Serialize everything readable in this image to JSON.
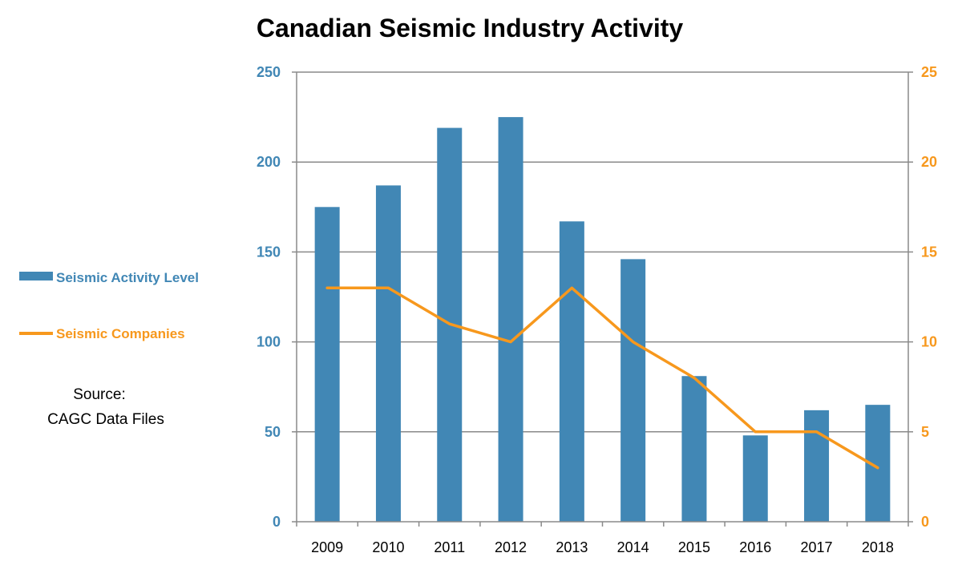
{
  "chart_data": {
    "type": "bar",
    "title": "Canadian Seismic Industry Activity",
    "categories": [
      "2009",
      "2010",
      "2011",
      "2012",
      "2013",
      "2014",
      "2015",
      "2016",
      "2017",
      "2018"
    ],
    "series": [
      {
        "name": "Seismic Activity  Level",
        "type": "bar",
        "axis": "left",
        "color": "#4187B5",
        "values": [
          175,
          187,
          219,
          225,
          167,
          146,
          81,
          48,
          62,
          65
        ]
      },
      {
        "name": "Seismic Companies",
        "type": "line",
        "axis": "right",
        "color": "#F7981D",
        "values": [
          13,
          13,
          11,
          10,
          13,
          10,
          8,
          5,
          5,
          3
        ]
      }
    ],
    "y_left": {
      "ylim": [
        0,
        250
      ],
      "ticks": [
        "0",
        "50",
        "100",
        "150",
        "200",
        "250"
      ],
      "color": "#4187B5"
    },
    "y_right": {
      "ylim": [
        0,
        25
      ],
      "ticks": [
        "0",
        "5",
        "10",
        "15",
        "20",
        "25"
      ],
      "color": "#F7981D"
    },
    "grid": "horizontal",
    "legend_position": "left",
    "xlabel": "",
    "ylabel": ""
  },
  "source": {
    "line1": "Source:",
    "line2": "CAGC Data Files"
  }
}
